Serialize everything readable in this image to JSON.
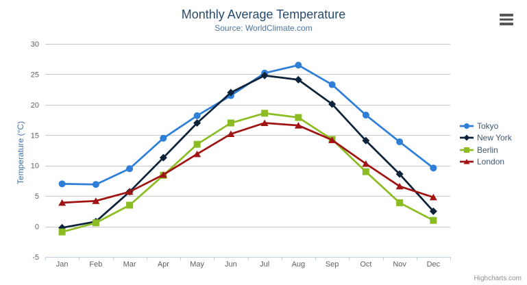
{
  "header": {
    "title": "Monthly Average Temperature",
    "subtitle": "Source: WorldClimate.com"
  },
  "context_menu": {
    "icon": "hamburger-icon"
  },
  "credits": {
    "label": "Highcharts.com"
  },
  "palette": {
    "title_color": "#274b6d",
    "subtitle_color": "#4d759e",
    "axis_label_color": "#606060",
    "yaxis_title_color": "#4572A7",
    "grid_color": "#C8C8C8",
    "axis_line_color": "#C0D0E0",
    "legend_text_color": "#3E576F",
    "credits_color": "#909090",
    "menu_icon_color": "#565656"
  },
  "chart_data": {
    "type": "line",
    "title": "Monthly Average Temperature",
    "subtitle": "Source: WorldClimate.com",
    "categories": [
      "Jan",
      "Feb",
      "Mar",
      "Apr",
      "May",
      "Jun",
      "Jul",
      "Aug",
      "Sep",
      "Oct",
      "Nov",
      "Dec"
    ],
    "series": [
      {
        "name": "Tokyo",
        "color": "#2f7ed8",
        "marker": "circle",
        "values": [
          7.0,
          6.9,
          9.5,
          14.5,
          18.2,
          21.5,
          25.2,
          26.5,
          23.3,
          18.3,
          13.9,
          9.6
        ]
      },
      {
        "name": "New York",
        "color": "#0d233a",
        "marker": "diamond",
        "values": [
          -0.2,
          0.8,
          5.7,
          11.3,
          17.0,
          22.0,
          24.8,
          24.1,
          20.1,
          14.1,
          8.6,
          2.5
        ]
      },
      {
        "name": "Berlin",
        "color": "#8bbc21",
        "marker": "square",
        "values": [
          -0.9,
          0.6,
          3.5,
          8.4,
          13.5,
          17.0,
          18.6,
          17.9,
          14.3,
          9.0,
          3.9,
          1.0
        ]
      },
      {
        "name": "London",
        "color": "#a01414",
        "marker": "triangle",
        "values": [
          3.9,
          4.2,
          5.7,
          8.5,
          11.9,
          15.2,
          17.0,
          16.6,
          14.2,
          10.3,
          6.6,
          4.8
        ]
      }
    ],
    "xlabel": "",
    "ylabel": "Temperature (°C)",
    "ylim": [
      -5,
      30
    ],
    "ytick_interval": 5,
    "grid": true,
    "legend_position": "right"
  }
}
